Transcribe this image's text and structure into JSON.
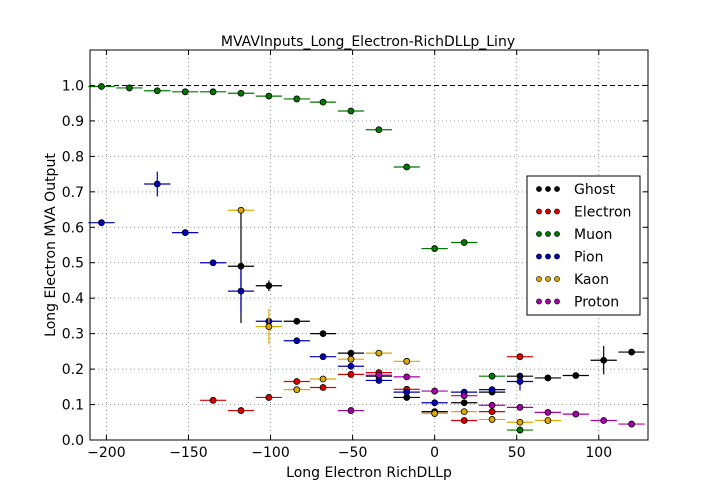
{
  "chart_data": {
    "type": "scatter",
    "title": "MVAVInputs_Long_Electron-RichDLLp_Liny",
    "xlabel": "Long Electron RichDLLp",
    "ylabel": "Long Electron MVA Output",
    "xlim": [
      -210,
      130
    ],
    "ylim": [
      0.0,
      1.1
    ],
    "xticks": [
      -200,
      -150,
      -100,
      -50,
      0,
      50,
      100
    ],
    "yticks": [
      0.0,
      0.1,
      0.2,
      0.3,
      0.4,
      0.5,
      0.6,
      0.7,
      0.8,
      0.9,
      1.0
    ],
    "grid": true,
    "legend_position": "right",
    "reference_line": 1.0,
    "series": [
      {
        "name": "Ghost",
        "color": "#000000",
        "points": [
          {
            "x": -118,
            "y": 0.49,
            "xerr": 8,
            "yerr": 0.16
          },
          {
            "x": -101,
            "y": 0.435,
            "xerr": 8,
            "yerr": 0.015
          },
          {
            "x": -84,
            "y": 0.335,
            "xerr": 8,
            "yerr": 0.003
          },
          {
            "x": -68,
            "y": 0.3,
            "xerr": 8,
            "yerr": 0.003
          },
          {
            "x": -51,
            "y": 0.245,
            "xerr": 8,
            "yerr": 0.003
          },
          {
            "x": -34,
            "y": 0.18,
            "xerr": 8,
            "yerr": 0.003
          },
          {
            "x": -17,
            "y": 0.12,
            "xerr": 8,
            "yerr": 0.003
          },
          {
            "x": 0,
            "y": 0.08,
            "xerr": 8,
            "yerr": 0.003
          },
          {
            "x": 18,
            "y": 0.105,
            "xerr": 8,
            "yerr": 0.003
          },
          {
            "x": 35,
            "y": 0.135,
            "xerr": 8,
            "yerr": 0.003
          },
          {
            "x": 52,
            "y": 0.18,
            "xerr": 8,
            "yerr": 0.003
          },
          {
            "x": 69,
            "y": 0.175,
            "xerr": 8,
            "yerr": 0.003
          },
          {
            "x": 86,
            "y": 0.182,
            "xerr": 8,
            "yerr": 0.005
          },
          {
            "x": 103,
            "y": 0.225,
            "xerr": 8,
            "yerr": 0.04
          },
          {
            "x": 120,
            "y": 0.248,
            "xerr": 8,
            "yerr": 0.004
          }
        ]
      },
      {
        "name": "Electron",
        "color": "#dd0000",
        "points": [
          {
            "x": -135,
            "y": 0.112,
            "xerr": 8,
            "yerr": 0.003
          },
          {
            "x": -118,
            "y": 0.083,
            "xerr": 8,
            "yerr": 0.003
          },
          {
            "x": -101,
            "y": 0.12,
            "xerr": 8,
            "yerr": 0.003
          },
          {
            "x": -84,
            "y": 0.165,
            "xerr": 8,
            "yerr": 0.003
          },
          {
            "x": -68,
            "y": 0.148,
            "xerr": 8,
            "yerr": 0.003
          },
          {
            "x": -51,
            "y": 0.185,
            "xerr": 8,
            "yerr": 0.003
          },
          {
            "x": -34,
            "y": 0.19,
            "xerr": 8,
            "yerr": 0.003
          },
          {
            "x": -17,
            "y": 0.143,
            "xerr": 8,
            "yerr": 0.003
          },
          {
            "x": 0,
            "y": 0.075,
            "xerr": 8,
            "yerr": 0.003
          },
          {
            "x": 18,
            "y": 0.055,
            "xerr": 8,
            "yerr": 0.003
          },
          {
            "x": 35,
            "y": 0.08,
            "xerr": 8,
            "yerr": 0.003
          },
          {
            "x": 52,
            "y": 0.235,
            "xerr": 8,
            "yerr": 0.005
          }
        ]
      },
      {
        "name": "Muon",
        "color": "#007700",
        "points": [
          {
            "x": -203,
            "y": 0.997,
            "xerr": 8,
            "yerr": 0.002
          },
          {
            "x": -186,
            "y": 0.993,
            "xerr": 8,
            "yerr": 0.002
          },
          {
            "x": -169,
            "y": 0.985,
            "xerr": 8,
            "yerr": 0.002
          },
          {
            "x": -152,
            "y": 0.982,
            "xerr": 8,
            "yerr": 0.002
          },
          {
            "x": -135,
            "y": 0.982,
            "xerr": 8,
            "yerr": 0.002
          },
          {
            "x": -118,
            "y": 0.978,
            "xerr": 8,
            "yerr": 0.002
          },
          {
            "x": -101,
            "y": 0.97,
            "xerr": 8,
            "yerr": 0.002
          },
          {
            "x": -84,
            "y": 0.962,
            "xerr": 8,
            "yerr": 0.002
          },
          {
            "x": -68,
            "y": 0.953,
            "xerr": 8,
            "yerr": 0.002
          },
          {
            "x": -51,
            "y": 0.928,
            "xerr": 8,
            "yerr": 0.002
          },
          {
            "x": -34,
            "y": 0.875,
            "xerr": 8,
            "yerr": 0.002
          },
          {
            "x": -17,
            "y": 0.77,
            "xerr": 8,
            "yerr": 0.002
          },
          {
            "x": 0,
            "y": 0.54,
            "xerr": 8,
            "yerr": 0.003
          },
          {
            "x": 18,
            "y": 0.557,
            "xerr": 8,
            "yerr": 0.003
          },
          {
            "x": 35,
            "y": 0.18,
            "xerr": 8,
            "yerr": 0.003
          },
          {
            "x": 52,
            "y": 0.028,
            "xerr": 8,
            "yerr": 0.01
          }
        ]
      },
      {
        "name": "Pion",
        "color": "#0000bb",
        "points": [
          {
            "x": -203,
            "y": 0.613,
            "xerr": 8,
            "yerr": 0.003
          },
          {
            "x": -169,
            "y": 0.722,
            "xerr": 8,
            "yerr": 0.035
          },
          {
            "x": -152,
            "y": 0.585,
            "xerr": 8,
            "yerr": 0.01
          },
          {
            "x": -135,
            "y": 0.5,
            "xerr": 8,
            "yerr": 0.004
          },
          {
            "x": -118,
            "y": 0.42,
            "xerr": 8,
            "yerr": 0.06
          },
          {
            "x": -101,
            "y": 0.335,
            "xerr": 8,
            "yerr": 0.01
          },
          {
            "x": -84,
            "y": 0.28,
            "xerr": 8,
            "yerr": 0.003
          },
          {
            "x": -68,
            "y": 0.235,
            "xerr": 8,
            "yerr": 0.003
          },
          {
            "x": -51,
            "y": 0.208,
            "xerr": 8,
            "yerr": 0.003
          },
          {
            "x": -34,
            "y": 0.168,
            "xerr": 8,
            "yerr": 0.003
          },
          {
            "x": -17,
            "y": 0.135,
            "xerr": 8,
            "yerr": 0.003
          },
          {
            "x": 0,
            "y": 0.105,
            "xerr": 8,
            "yerr": 0.003
          },
          {
            "x": 18,
            "y": 0.135,
            "xerr": 8,
            "yerr": 0.003
          },
          {
            "x": 35,
            "y": 0.142,
            "xerr": 8,
            "yerr": 0.003
          },
          {
            "x": 52,
            "y": 0.165,
            "xerr": 8,
            "yerr": 0.025
          }
        ]
      },
      {
        "name": "Kaon",
        "color": "#ddaa00",
        "points": [
          {
            "x": -118,
            "y": 0.648,
            "xerr": 8,
            "yerr": 0.003
          },
          {
            "x": -101,
            "y": 0.32,
            "xerr": 8,
            "yerr": 0.05
          },
          {
            "x": -84,
            "y": 0.142,
            "xerr": 8,
            "yerr": 0.003
          },
          {
            "x": -68,
            "y": 0.172,
            "xerr": 8,
            "yerr": 0.003
          },
          {
            "x": -51,
            "y": 0.228,
            "xerr": 8,
            "yerr": 0.003
          },
          {
            "x": -34,
            "y": 0.245,
            "xerr": 8,
            "yerr": 0.003
          },
          {
            "x": -17,
            "y": 0.222,
            "xerr": 8,
            "yerr": 0.003
          },
          {
            "x": 0,
            "y": 0.075,
            "xerr": 8,
            "yerr": 0.003
          },
          {
            "x": 18,
            "y": 0.08,
            "xerr": 8,
            "yerr": 0.003
          },
          {
            "x": 35,
            "y": 0.058,
            "xerr": 8,
            "yerr": 0.003
          },
          {
            "x": 52,
            "y": 0.05,
            "xerr": 8,
            "yerr": 0.003
          },
          {
            "x": 69,
            "y": 0.055,
            "xerr": 8,
            "yerr": 0.003
          }
        ]
      },
      {
        "name": "Proton",
        "color": "#aa00aa",
        "points": [
          {
            "x": -51,
            "y": 0.083,
            "xerr": 8,
            "yerr": 0.003
          },
          {
            "x": -34,
            "y": 0.183,
            "xerr": 8,
            "yerr": 0.003
          },
          {
            "x": -17,
            "y": 0.178,
            "xerr": 8,
            "yerr": 0.003
          },
          {
            "x": 0,
            "y": 0.138,
            "xerr": 8,
            "yerr": 0.003
          },
          {
            "x": 18,
            "y": 0.125,
            "xerr": 8,
            "yerr": 0.003
          },
          {
            "x": 35,
            "y": 0.098,
            "xerr": 8,
            "yerr": 0.003
          },
          {
            "x": 52,
            "y": 0.092,
            "xerr": 8,
            "yerr": 0.003
          },
          {
            "x": 69,
            "y": 0.078,
            "xerr": 8,
            "yerr": 0.003
          },
          {
            "x": 86,
            "y": 0.073,
            "xerr": 8,
            "yerr": 0.003
          },
          {
            "x": 103,
            "y": 0.055,
            "xerr": 8,
            "yerr": 0.003
          },
          {
            "x": 120,
            "y": 0.045,
            "xerr": 8,
            "yerr": 0.003
          }
        ]
      }
    ]
  }
}
